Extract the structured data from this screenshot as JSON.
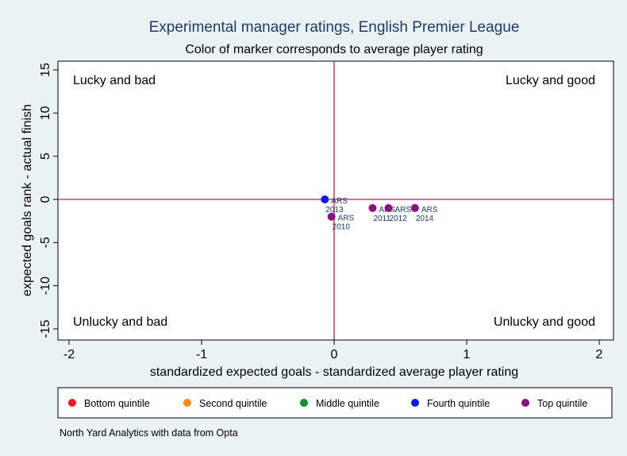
{
  "chart_data": {
    "type": "scatter",
    "title": "Experimental manager ratings, English Premier League",
    "subtitle": "Color of marker corresponds to average player rating",
    "xlabel": "standardized expected goals - standardized average player rating",
    "ylabel": "expected goals rank - actual finish",
    "xlim": [
      -2,
      2
    ],
    "ylim": [
      -16,
      16
    ],
    "xticks": [
      -2,
      -1,
      0,
      1,
      2
    ],
    "yticks": [
      -15,
      -10,
      -5,
      0,
      5,
      10,
      15
    ],
    "reference_lines": {
      "x": 0,
      "y": 0,
      "color": "#c0185a"
    },
    "quadrant_labels": {
      "top_left": "Lucky and bad",
      "top_right": "Lucky and good",
      "bottom_left": "Unlucky and bad",
      "bottom_right": "Unlucky and good"
    },
    "points": [
      {
        "team": "ARS",
        "year": "2013",
        "x": -0.07,
        "y": 0,
        "quintile": "Fourth quintile"
      },
      {
        "team": "ARS",
        "year": "2010",
        "x": -0.02,
        "y": -2,
        "quintile": "Top quintile"
      },
      {
        "team": "ARS",
        "year": "2011",
        "x": 0.29,
        "y": -1,
        "quintile": "Top quintile"
      },
      {
        "team": "ARS",
        "year": "2012",
        "x": 0.41,
        "y": -1,
        "quintile": "Top quintile"
      },
      {
        "team": "ARS",
        "year": "2014",
        "x": 0.61,
        "y": -1,
        "quintile": "Top quintile"
      }
    ],
    "legend": [
      {
        "label": "Bottom quintile",
        "color": "#ee1c1c"
      },
      {
        "label": "Second quintile",
        "color": "#f28b1b"
      },
      {
        "label": "Middle quintile",
        "color": "#178c2c"
      },
      {
        "label": "Fourth quintile",
        "color": "#1416ea"
      },
      {
        "label": "Top quintile",
        "color": "#8b1283"
      }
    ],
    "legend_position": "bottom",
    "note": "North Yard Analytics with data from Opta"
  }
}
